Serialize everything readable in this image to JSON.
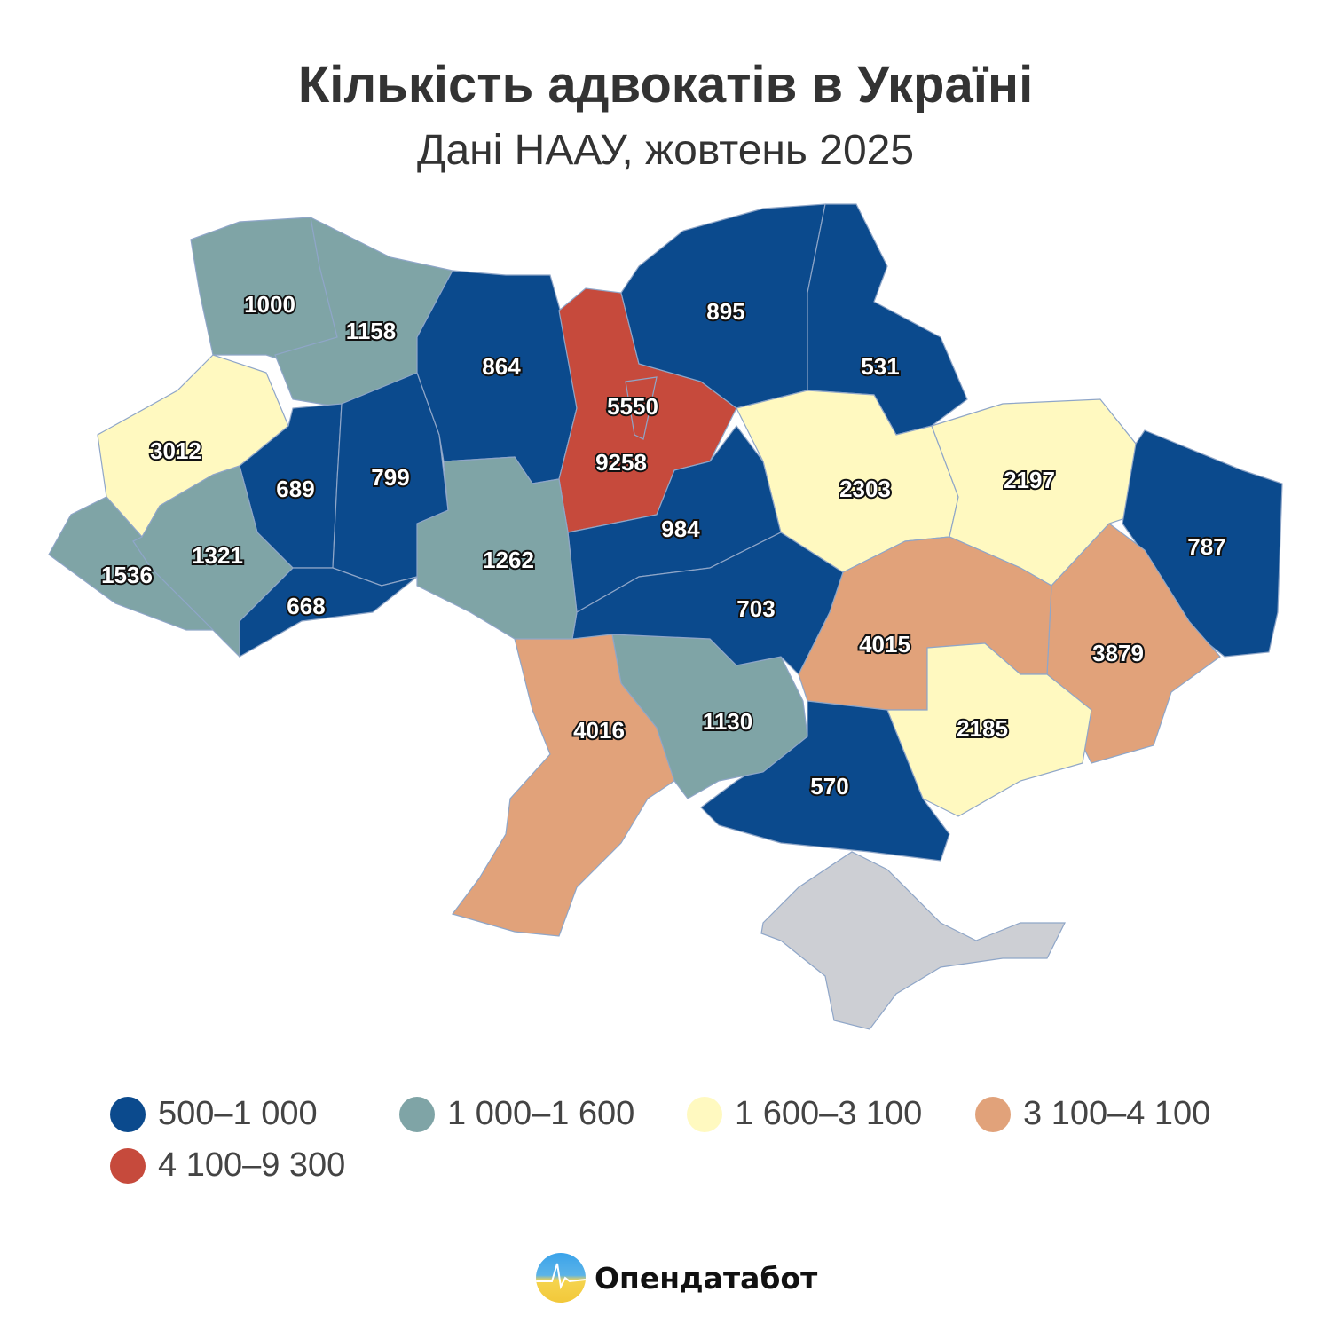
{
  "header": {
    "title": "Кількість адвокатів в Україні",
    "subtitle": "Дані НААУ, жовтень 2025"
  },
  "colors": {
    "bucket0": "#0b4a8d",
    "bucket1": "#7fa4a6",
    "bucket2": "#fff9c0",
    "bucket3": "#e1a27a",
    "bucket4": "#c64a3c",
    "no_data": "#cdcfd4"
  },
  "regions": [
    {
      "value": "1000",
      "bucket": 1
    },
    {
      "value": "1158",
      "bucket": 1
    },
    {
      "value": "3012",
      "bucket": 2
    },
    {
      "value": "689",
      "bucket": 0
    },
    {
      "value": "799",
      "bucket": 0
    },
    {
      "value": "864",
      "bucket": 0
    },
    {
      "value": "9258",
      "bucket": 4
    },
    {
      "value": "5550",
      "bucket": 4
    },
    {
      "value": "895",
      "bucket": 0
    },
    {
      "value": "531",
      "bucket": 0
    },
    {
      "value": "2303",
      "bucket": 2
    },
    {
      "value": "2197",
      "bucket": 2
    },
    {
      "value": "787",
      "bucket": 0
    },
    {
      "value": "3879",
      "bucket": 3
    },
    {
      "value": "4015",
      "bucket": 3
    },
    {
      "value": "2185",
      "bucket": 2
    },
    {
      "value": "570",
      "bucket": 0
    },
    {
      "value": "1130",
      "bucket": 1
    },
    {
      "value": "4016",
      "bucket": 3
    },
    {
      "value": "984",
      "bucket": 0
    },
    {
      "value": "703",
      "bucket": 0
    },
    {
      "value": "1262",
      "bucket": 1
    },
    {
      "value": "668",
      "bucket": 0
    },
    {
      "value": "1321",
      "bucket": 1
    },
    {
      "value": "1536",
      "bucket": 1
    }
  ],
  "legend": [
    {
      "label": "500–1 000",
      "color": "#0b4a8d"
    },
    {
      "label": "1 000–1 600",
      "color": "#7fa4a6"
    },
    {
      "label": "1 600–3 100",
      "color": "#fff9c0"
    },
    {
      "label": "3 100–4 100",
      "color": "#e1a27a"
    },
    {
      "label": "4 100–9 300",
      "color": "#c64a3c"
    }
  ],
  "brand": {
    "name": "Опендатабот"
  }
}
